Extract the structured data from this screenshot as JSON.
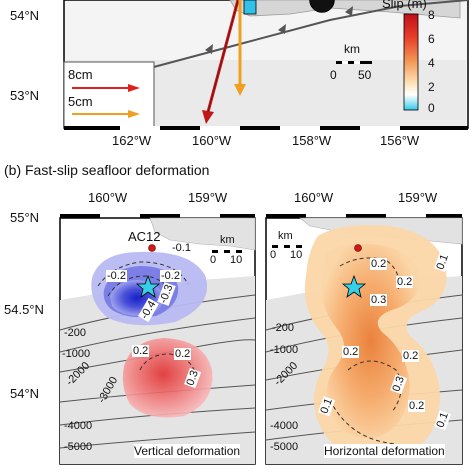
{
  "top_map": {
    "lat_labels": [
      "54°N",
      "53°N"
    ],
    "lon_labels": [
      "162°W",
      "160°W",
      "158°W",
      "156°W"
    ],
    "vector_legend": [
      "8cm",
      "5cm"
    ],
    "slip_colorbar": {
      "title": "Slip (m)",
      "ticks": [
        "8",
        "6",
        "4",
        "2",
        "0"
      ],
      "colors": [
        "#c0101a",
        "#e8402a",
        "#f39a58",
        "#fde3b8",
        "#ffffff",
        "#9fe7f5",
        "#35c8e8"
      ]
    },
    "scalebar": {
      "unit": "km",
      "ticks": [
        "0",
        "50"
      ]
    },
    "vector_colors": {
      "8cm": "#e0201c",
      "5cm": "#f0a020"
    }
  },
  "section_b": {
    "title": "(b) Fast-slip seafloor deformation",
    "lat_labels": [
      "55°N",
      "54.5°N",
      "54°N"
    ],
    "panel_left": {
      "lon_labels": [
        "160°W",
        "159°W"
      ],
      "station": "AC12",
      "station_value": "-0.1",
      "scalebar": {
        "unit": "km",
        "ticks": [
          "0",
          "10"
        ]
      },
      "contour_labels_neg": [
        "-0.2",
        "-0.2",
        "-0.3",
        "-0.4"
      ],
      "contour_labels_pos": [
        "0.2",
        "0.2",
        "0.3"
      ],
      "bathymetry_labels": [
        "-200",
        "-1000",
        "-2000",
        "-3000",
        "-4000",
        "-5000"
      ],
      "caption": "Vertical deformation"
    },
    "panel_right": {
      "lon_labels": [
        "160°W",
        "159°W"
      ],
      "scalebar": {
        "unit": "km",
        "ticks": [
          "0",
          "10"
        ]
      },
      "contour_labels": [
        "0.1",
        "0.2",
        "0.2",
        "0.3",
        "0.2",
        "0.2",
        "0.3",
        "0.1",
        "0.2",
        "0.1"
      ],
      "bathymetry_labels": [
        "-200",
        "-1000",
        "-2000",
        "-4000",
        "-5000"
      ],
      "caption": "Horizontal deformation"
    }
  }
}
